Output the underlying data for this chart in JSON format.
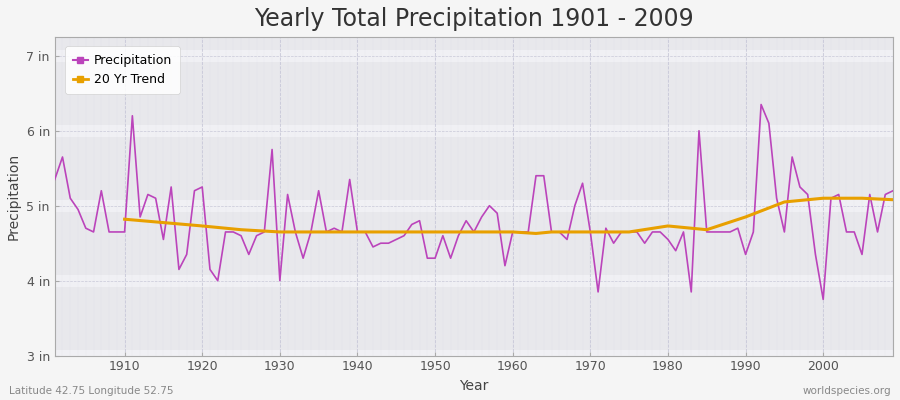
{
  "title": "Yearly Total Precipitation 1901 - 2009",
  "xlabel": "Year",
  "ylabel": "Precipitation",
  "subtitle": "Latitude 42.75 Longitude 52.75",
  "watermark": "worldspecies.org",
  "years": [
    1901,
    1902,
    1903,
    1904,
    1905,
    1906,
    1907,
    1908,
    1909,
    1910,
    1911,
    1912,
    1913,
    1914,
    1915,
    1916,
    1917,
    1918,
    1919,
    1920,
    1921,
    1922,
    1923,
    1924,
    1925,
    1926,
    1927,
    1928,
    1929,
    1930,
    1931,
    1932,
    1933,
    1934,
    1935,
    1936,
    1937,
    1938,
    1939,
    1940,
    1941,
    1942,
    1943,
    1944,
    1945,
    1946,
    1947,
    1948,
    1949,
    1950,
    1951,
    1952,
    1953,
    1954,
    1955,
    1956,
    1957,
    1958,
    1959,
    1960,
    1961,
    1962,
    1963,
    1964,
    1965,
    1966,
    1967,
    1968,
    1969,
    1970,
    1971,
    1972,
    1973,
    1974,
    1975,
    1976,
    1977,
    1978,
    1979,
    1980,
    1981,
    1982,
    1983,
    1984,
    1985,
    1986,
    1987,
    1988,
    1989,
    1990,
    1991,
    1992,
    1993,
    1994,
    1995,
    1996,
    1997,
    1998,
    1999,
    2000,
    2001,
    2002,
    2003,
    2004,
    2005,
    2006,
    2007,
    2008,
    2009
  ],
  "precip_in": [
    5.35,
    5.65,
    5.1,
    4.95,
    4.7,
    4.65,
    5.2,
    4.65,
    4.65,
    4.65,
    6.2,
    4.85,
    5.15,
    5.1,
    4.55,
    5.25,
    4.15,
    4.35,
    5.2,
    5.25,
    4.15,
    4.0,
    4.65,
    4.65,
    4.6,
    4.35,
    4.6,
    4.65,
    5.75,
    4.0,
    5.15,
    4.65,
    4.3,
    4.65,
    5.2,
    4.65,
    4.7,
    4.65,
    5.35,
    4.65,
    4.65,
    4.45,
    4.5,
    4.5,
    4.55,
    4.6,
    4.75,
    4.8,
    4.3,
    4.3,
    4.6,
    4.3,
    4.6,
    4.8,
    4.65,
    4.85,
    5.0,
    4.9,
    4.2,
    4.65,
    4.65,
    4.65,
    5.4,
    5.4,
    4.65,
    4.65,
    4.55,
    5.0,
    5.3,
    4.65,
    3.85,
    4.7,
    4.5,
    4.65,
    4.65,
    4.65,
    4.5,
    4.65,
    4.65,
    4.55,
    4.4,
    4.65,
    3.85,
    6.0,
    4.65,
    4.65,
    4.65,
    4.65,
    4.7,
    4.35,
    4.65,
    6.35,
    6.1,
    5.1,
    4.65,
    5.65,
    5.25,
    5.15,
    4.35,
    3.75,
    5.1,
    5.15,
    4.65,
    4.65,
    4.35,
    5.15,
    4.65,
    5.15,
    5.2
  ],
  "trend_years": [
    1910,
    1920,
    1925,
    1930,
    1940,
    1950,
    1960,
    1963,
    1965,
    1970,
    1975,
    1980,
    1985,
    1990,
    1993,
    1995,
    2000,
    2002,
    2005,
    2009
  ],
  "trend_vals": [
    4.82,
    4.73,
    4.68,
    4.65,
    4.65,
    4.65,
    4.65,
    4.63,
    4.65,
    4.65,
    4.65,
    4.73,
    4.68,
    4.85,
    4.97,
    5.05,
    5.1,
    5.1,
    5.1,
    5.08
  ],
  "fig_bg_color": "#f5f5f5",
  "plot_bg_light": "#e8e8ec",
  "plot_bg_dark": "#dcdce4",
  "precip_color": "#bb44bb",
  "trend_color": "#e8a000",
  "grid_color": "#c8c8d8",
  "hband_color": "#f0f0f4",
  "ylim_bottom": 3.0,
  "ylim_top": 7.25,
  "yticks": [
    3,
    4,
    5,
    6,
    7
  ],
  "ytick_labels": [
    "3 in",
    "4 in",
    "5 in",
    "6 in",
    "7 in"
  ],
  "xticks": [
    1910,
    1920,
    1930,
    1940,
    1950,
    1960,
    1970,
    1980,
    1990,
    2000
  ],
  "title_fontsize": 17,
  "axis_label_fontsize": 10,
  "tick_fontsize": 9,
  "legend_fontsize": 9
}
